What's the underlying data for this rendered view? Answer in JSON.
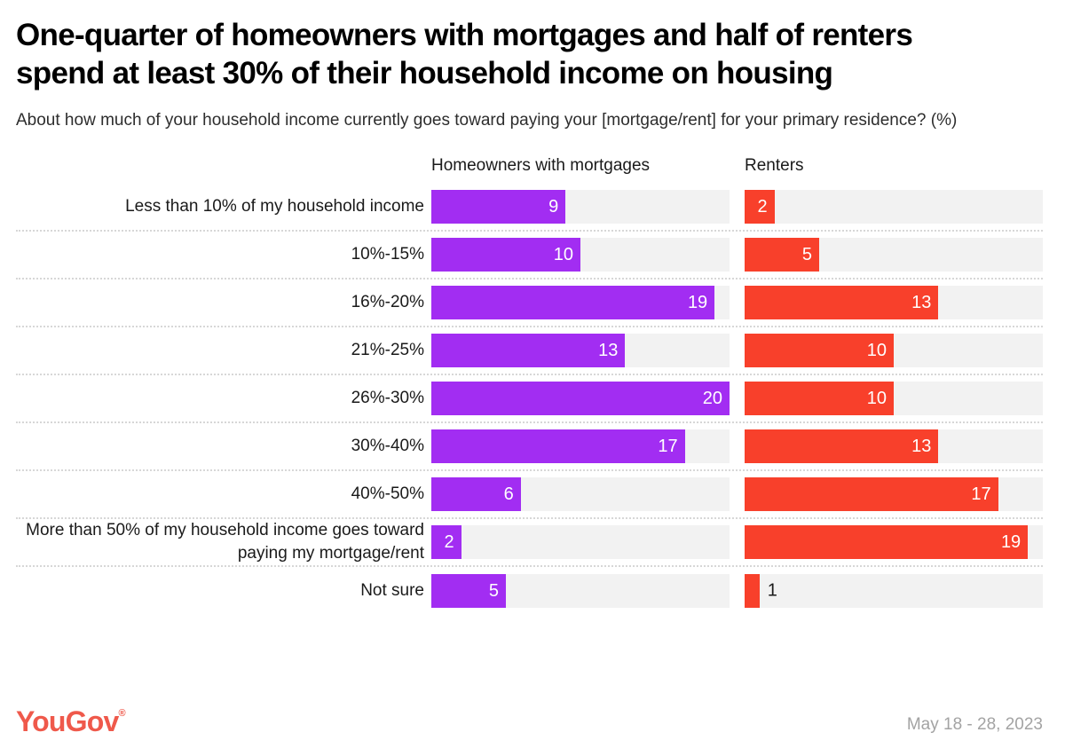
{
  "header": {
    "title": "One-quarter of homeowners with mortgages and half of renters spend at least 30% of their household income on housing",
    "subtitle": "About how much of your household income currently goes toward paying your [mortgage/rent] for your primary residence? (%)"
  },
  "chart_data": {
    "type": "bar",
    "orientation": "horizontal",
    "max_value": 20,
    "grid": "off",
    "value_labels": "inside-end",
    "track_color": "#f2f2f2",
    "categories": [
      "Less than 10% of my household income",
      "10%-15%",
      "16%-20%",
      "21%-25%",
      "26%-30%",
      "30%-40%",
      "40%-50%",
      "More than 50% of my household income goes toward paying my mortgage/rent",
      "Not sure"
    ],
    "series": [
      {
        "name": "Homeowners with mortgages",
        "color": "#a22df2",
        "values": [
          9,
          10,
          19,
          13,
          20,
          17,
          6,
          2,
          5
        ]
      },
      {
        "name": "Renters",
        "color": "#f8402b",
        "values": [
          2,
          5,
          13,
          10,
          10,
          13,
          17,
          19,
          1
        ]
      }
    ]
  },
  "footer": {
    "logo_text": "YouGov",
    "logo_registered": "®",
    "logo_color": "#ef594b",
    "date_range": "May 18 - 28, 2023"
  }
}
